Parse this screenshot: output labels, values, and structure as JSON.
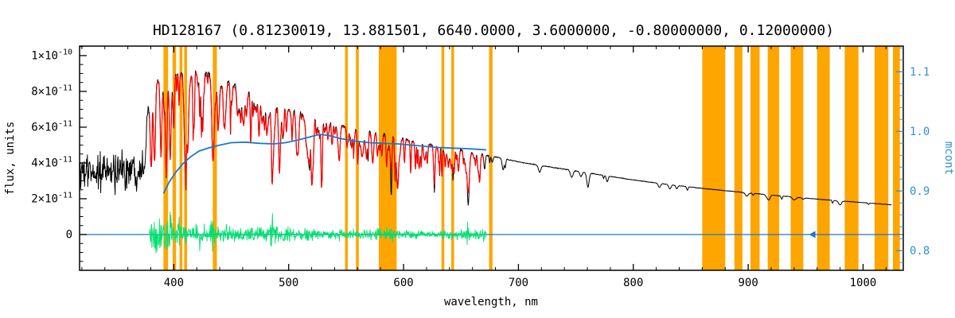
{
  "chart_data": {
    "type": "line",
    "title": "HD128167  (0.81230019, 13.881501, 6640.0000, 3.6000000, -0.80000000, 0.12000000)",
    "xlabel": "wavelength, nm",
    "ylabel_left": "flux, units",
    "ylabel_right": "mcont",
    "x_range": [
      318,
      1035
    ],
    "y_left_flux_e11_range": [
      -2.0,
      10.53
    ],
    "y_right_range": [
      0.767,
      1.143
    ],
    "x_major_ticks": [
      400,
      500,
      600,
      700,
      800,
      900,
      1000
    ],
    "x_minor_step": 20,
    "y_left_ticks": [
      {
        "v": 0,
        "label": "0"
      },
      {
        "v": 2,
        "label": "2×10^-11"
      },
      {
        "v": 4,
        "label": "4×10^-11"
      },
      {
        "v": 6,
        "label": "6×10^-11"
      },
      {
        "v": 8,
        "label": "8×10^-11"
      },
      {
        "v": 10,
        "label": "1×10^-10"
      }
    ],
    "y_left_minor_step": 0.5,
    "y_right_ticks": [
      0.8,
      0.9,
      1.0,
      1.1
    ],
    "y_right_minor_step": 0.02,
    "colors": {
      "band": "#FFA500",
      "observed": "#000000",
      "model": "#FF0000",
      "residual": "#00E070",
      "mcont": "#1F78C8",
      "right_axis": "#2E93D0",
      "frame": "#000000"
    },
    "masked_bands_nm": [
      [
        391,
        395
      ],
      [
        399,
        402
      ],
      [
        405,
        407.5
      ],
      [
        409,
        411.5
      ],
      [
        434,
        437.5
      ],
      [
        549,
        551.5
      ],
      [
        558.5,
        561
      ],
      [
        578.5,
        594
      ],
      [
        633,
        635.5
      ],
      [
        641.5,
        644
      ],
      [
        674.5,
        677.5
      ],
      [
        860,
        880
      ],
      [
        888,
        895
      ],
      [
        902,
        910
      ],
      [
        917,
        927
      ],
      [
        937,
        948
      ],
      [
        960,
        971
      ],
      [
        984,
        996
      ],
      [
        1010,
        1022
      ],
      [
        1026,
        1032
      ]
    ],
    "series": {
      "observed": {
        "color": "#000000",
        "range_nm": [
          318.5,
          1025
        ],
        "continuum_e11_points": [
          [
            318,
            3.4
          ],
          [
            352,
            3.55
          ],
          [
            368,
            3.7
          ],
          [
            372,
            3.85
          ],
          [
            375,
            4.1
          ],
          [
            376.5,
            6.2
          ],
          [
            378,
            7.6
          ],
          [
            381,
            8.3
          ],
          [
            386,
            8.6
          ],
          [
            392,
            8.8
          ],
          [
            400,
            9.0
          ],
          [
            410,
            9.1
          ],
          [
            420,
            9.15
          ],
          [
            432,
            8.95
          ],
          [
            445,
            8.6
          ],
          [
            458,
            8.2
          ],
          [
            470,
            7.9
          ],
          [
            482,
            7.55
          ],
          [
            495,
            7.15
          ],
          [
            510,
            6.8
          ],
          [
            525,
            6.5
          ],
          [
            540,
            6.2
          ],
          [
            555,
            5.95
          ],
          [
            570,
            5.75
          ],
          [
            585,
            5.55
          ],
          [
            600,
            5.35
          ],
          [
            615,
            5.15
          ],
          [
            630,
            4.95
          ],
          [
            645,
            4.8
          ],
          [
            660,
            4.6
          ],
          [
            675,
            4.4
          ],
          [
            690,
            4.2
          ],
          [
            705,
            4.0
          ],
          [
            720,
            3.85
          ],
          [
            740,
            3.65
          ],
          [
            760,
            3.45
          ],
          [
            780,
            3.25
          ],
          [
            800,
            3.05
          ],
          [
            820,
            2.88
          ],
          [
            840,
            2.72
          ],
          [
            860,
            2.58
          ],
          [
            880,
            2.45
          ],
          [
            900,
            2.33
          ],
          [
            920,
            2.2
          ],
          [
            940,
            2.1
          ],
          [
            960,
            1.98
          ],
          [
            980,
            1.88
          ],
          [
            1000,
            1.78
          ],
          [
            1025,
            1.66
          ]
        ],
        "extra_lines": [
          [
            589.3,
            0.28,
            0.7
          ],
          [
            656.28,
            0.15,
            1.0
          ],
          [
            627.0,
            0.1,
            0.5
          ],
          [
            643.0,
            0.08,
            0.4
          ],
          [
            518.0,
            0.07,
            0.6
          ],
          [
            495.0,
            0.05,
            0.4
          ],
          [
            569.0,
            0.08,
            0.4
          ],
          [
            554.0,
            0.06,
            0.4
          ]
        ]
      },
      "model": {
        "color": "#FF0000",
        "range_nm": [
          378.5,
          670
        ],
        "scale": 0.988
      },
      "residual": {
        "color": "#00E070",
        "range_nm": [
          378.5,
          672
        ],
        "zero_e11": 0
      },
      "mcont": {
        "color": "#1F78C8",
        "points": [
          [
            391,
            0.896
          ],
          [
            396,
            0.915
          ],
          [
            402,
            0.932
          ],
          [
            408,
            0.946
          ],
          [
            415,
            0.958
          ],
          [
            422,
            0.967
          ],
          [
            430,
            0.972
          ],
          [
            440,
            0.977
          ],
          [
            450,
            0.981
          ],
          [
            462,
            0.982
          ],
          [
            475,
            0.98
          ],
          [
            487,
            0.979
          ],
          [
            497,
            0.981
          ],
          [
            507,
            0.985
          ],
          [
            517,
            0.99
          ],
          [
            527,
            0.995
          ],
          [
            535,
            0.993
          ],
          [
            545,
            0.988
          ],
          [
            557,
            0.984
          ],
          [
            570,
            0.981
          ],
          [
            583,
            0.98
          ],
          [
            595,
            0.979
          ],
          [
            607,
            0.977
          ],
          [
            618,
            0.975
          ],
          [
            630,
            0.973
          ],
          [
            643,
            0.972
          ],
          [
            655,
            0.971
          ],
          [
            665,
            0.97
          ],
          [
            672,
            0.969
          ]
        ]
      },
      "zero_line": {
        "color": "#1F78C8",
        "flux_e11": 0,
        "range_nm": [
          318,
          1035
        ],
        "arrow_nm": 953
      }
    },
    "absorption_lines_nm_depth_width": [
      [
        380.0,
        0.38,
        0.9
      ],
      [
        383.5,
        0.45,
        1.0
      ],
      [
        388.9,
        0.5,
        1.1
      ],
      [
        393.37,
        0.5,
        0.9
      ],
      [
        396.85,
        0.52,
        1.1
      ],
      [
        404.6,
        0.2,
        0.6
      ],
      [
        410.17,
        0.5,
        1.4
      ],
      [
        422.67,
        0.28,
        0.7
      ],
      [
        434.05,
        0.52,
        1.5
      ],
      [
        438.3,
        0.2,
        0.6
      ],
      [
        445.5,
        0.15,
        0.5
      ],
      [
        467.0,
        0.12,
        0.5
      ],
      [
        486.13,
        0.5,
        1.6
      ],
      [
        495.7,
        0.12,
        0.5
      ],
      [
        516.73,
        0.28,
        0.9
      ],
      [
        518.36,
        0.22,
        0.7
      ],
      [
        527.04,
        0.16,
        0.6
      ],
      [
        589.3,
        0.3,
        0.9
      ],
      [
        610.3,
        0.1,
        0.5
      ],
      [
        627.0,
        0.12,
        0.5
      ],
      [
        656.28,
        0.5,
        1.6
      ],
      [
        686.7,
        0.15,
        1.3
      ],
      [
        718.5,
        0.1,
        1.6
      ],
      [
        760.5,
        0.2,
        1.6
      ],
      [
        822.7,
        0.08,
        1.5
      ],
      [
        898.8,
        0.08,
        2.0
      ],
      [
        940.0,
        0.08,
        2.4
      ]
    ],
    "noise": {
      "seed": 1234,
      "line_seed": 77,
      "weak_line_count": 220,
      "nir_line_count": 20,
      "amp_rel_points": [
        [
          318,
          0.34
        ],
        [
          370,
          0.32
        ],
        [
          374,
          0.2
        ],
        [
          377,
          0.03
        ],
        [
          380,
          0.018
        ],
        [
          500,
          0.014
        ],
        [
          670,
          0.012
        ],
        [
          680,
          0.006
        ],
        [
          1035,
          0.006
        ]
      ],
      "residual_amp_points": [
        [
          378,
          0.5
        ],
        [
          388,
          0.75
        ],
        [
          395,
          0.65
        ],
        [
          405,
          0.55
        ],
        [
          420,
          0.5
        ],
        [
          435,
          0.55
        ],
        [
          450,
          0.42
        ],
        [
          470,
          0.4
        ],
        [
          486,
          0.5
        ],
        [
          500,
          0.35
        ],
        [
          520,
          0.3
        ],
        [
          540,
          0.28
        ],
        [
          560,
          0.26
        ],
        [
          575,
          0.3
        ],
        [
          590,
          0.33
        ],
        [
          605,
          0.22
        ],
        [
          620,
          0.2
        ],
        [
          635,
          0.22
        ],
        [
          650,
          0.28
        ],
        [
          660,
          0.33
        ],
        [
          672,
          0.38
        ]
      ]
    }
  }
}
